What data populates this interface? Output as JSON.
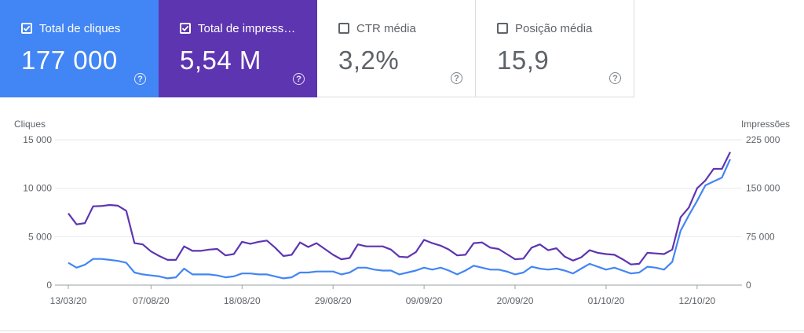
{
  "metrics": [
    {
      "label": "Total de cliques",
      "value": "177 000",
      "checked": true,
      "color": "#4285f4"
    },
    {
      "label": "Total de impress…",
      "value": "5,54 M",
      "checked": true,
      "color": "#5e35b1"
    },
    {
      "label": "CTR média",
      "value": "3,2%",
      "checked": false,
      "color": "#ffffff"
    },
    {
      "label": "Posição média",
      "value": "15,9",
      "checked": false,
      "color": "#ffffff"
    }
  ],
  "help_symbol": "?",
  "chart_data": {
    "type": "line",
    "title": "",
    "left_axis": {
      "label": "Cliques",
      "ticks": [
        0,
        5000,
        10000,
        15000
      ],
      "tick_labels": [
        "0",
        "5 000",
        "10 000",
        "15 000"
      ],
      "ylim": [
        0,
        15000
      ]
    },
    "right_axis": {
      "label": "Impressões",
      "ticks": [
        0,
        75000,
        150000,
        225000
      ],
      "tick_labels": [
        "0",
        "75 000",
        "150 000",
        "225 000"
      ],
      "ylim": [
        0,
        225000
      ]
    },
    "x_tick_labels": [
      "13/03/20",
      "07/08/20",
      "18/08/20",
      "29/08/20",
      "09/09/20",
      "20/09/20",
      "01/10/20",
      "12/10/20"
    ],
    "x_tick_index": [
      0,
      10,
      21,
      32,
      43,
      54,
      65,
      76
    ],
    "grid": true,
    "series": [
      {
        "name": "Total de impressões",
        "axis": "right",
        "color": "#5e35b1",
        "values": [
          111000,
          94000,
          96000,
          122000,
          122500,
          124000,
          123000,
          115000,
          65000,
          63000,
          52000,
          45000,
          39000,
          39000,
          60000,
          53000,
          53000,
          55000,
          56000,
          46000,
          48000,
          67000,
          64000,
          67000,
          69000,
          58000,
          45000,
          47000,
          66000,
          59000,
          65000,
          56000,
          47000,
          40000,
          42000,
          63000,
          60000,
          60000,
          60000,
          55000,
          44000,
          43000,
          51000,
          70000,
          65000,
          61000,
          55000,
          46000,
          47000,
          65000,
          66000,
          58000,
          56000,
          48000,
          40000,
          41000,
          58000,
          63000,
          54000,
          57000,
          44000,
          38000,
          43000,
          54000,
          50000,
          48000,
          47000,
          40000,
          32000,
          33000,
          50000,
          49000,
          48000,
          55000,
          105000,
          120000,
          150000,
          162000,
          180000,
          180000,
          206000
        ]
      },
      {
        "name": "Total de cliques",
        "axis": "left",
        "color": "#4285f4",
        "values": [
          2300,
          1800,
          2100,
          2700,
          2700,
          2600,
          2500,
          2300,
          1300,
          1100,
          1000,
          900,
          700,
          800,
          1700,
          1100,
          1100,
          1100,
          1000,
          800,
          900,
          1200,
          1200,
          1100,
          1100,
          900,
          700,
          800,
          1300,
          1300,
          1400,
          1400,
          1400,
          1100,
          1300,
          1800,
          1800,
          1600,
          1500,
          1500,
          1100,
          1300,
          1500,
          1800,
          1600,
          1800,
          1500,
          1100,
          1500,
          2000,
          1800,
          1600,
          1600,
          1400,
          1100,
          1300,
          1900,
          1700,
          1600,
          1700,
          1500,
          1200,
          1700,
          2200,
          1900,
          1600,
          1800,
          1500,
          1200,
          1300,
          1900,
          1800,
          1600,
          2400,
          5600,
          7200,
          8700,
          10300,
          10700,
          11100,
          13000
        ]
      }
    ]
  }
}
